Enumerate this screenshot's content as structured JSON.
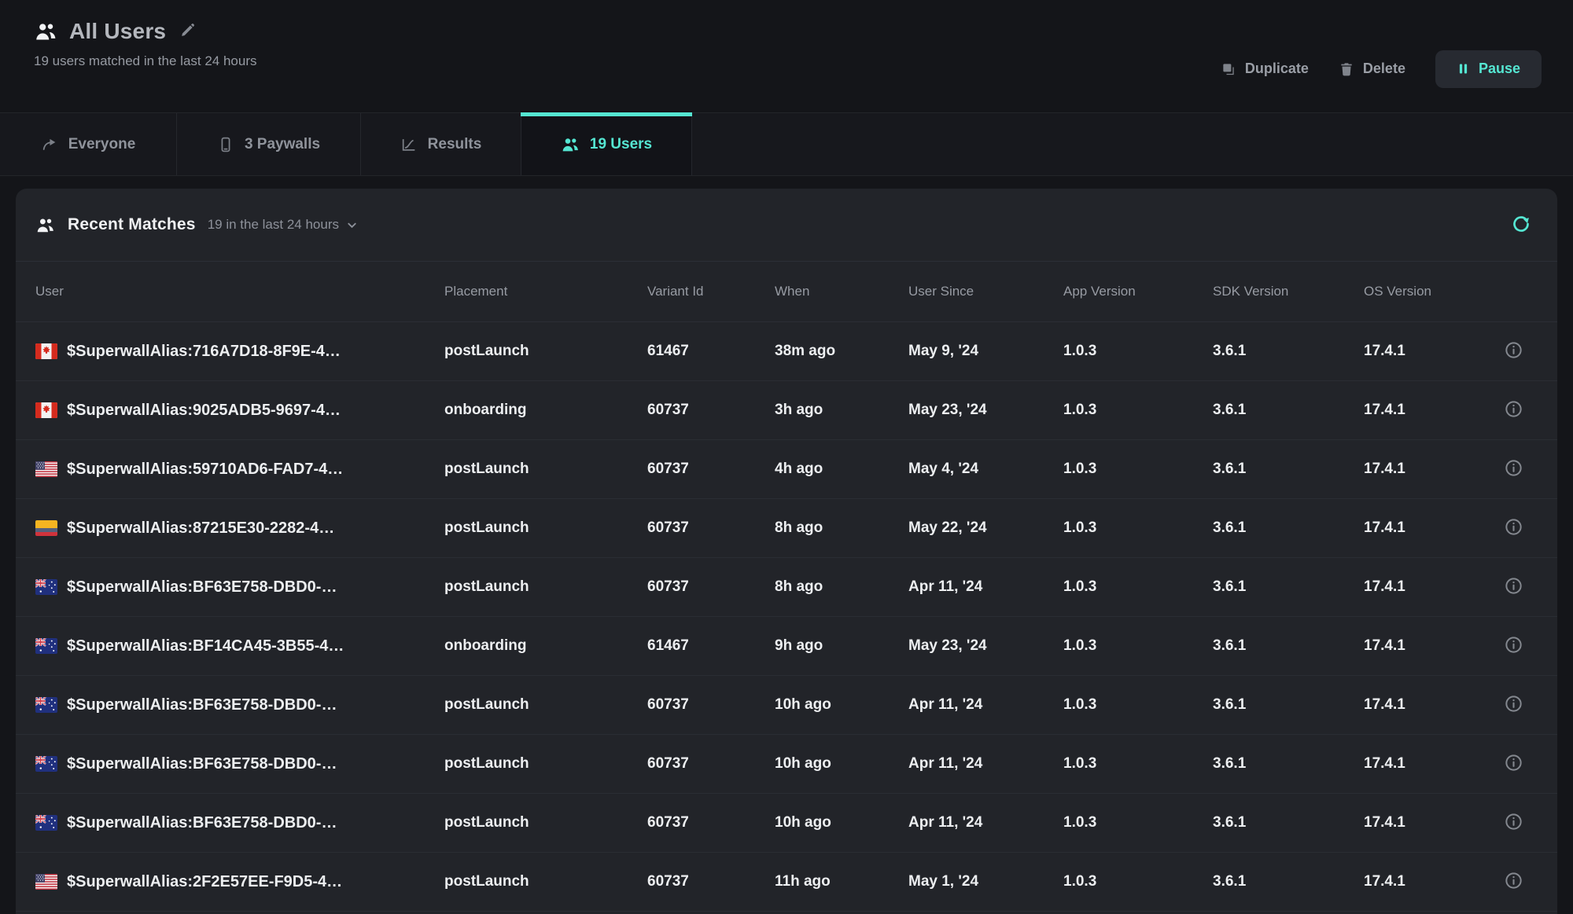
{
  "app": {
    "accent_color": "#55e6d2"
  },
  "header": {
    "title": "All Users",
    "subtitle": "19 users matched in the last 24 hours",
    "actions": {
      "duplicate_label": "Duplicate",
      "delete_label": "Delete",
      "pause_label": "Pause"
    }
  },
  "tabs": [
    {
      "label": "Everyone",
      "icon": "share-icon",
      "active": false
    },
    {
      "label": "3 Paywalls",
      "icon": "phone-icon",
      "active": false
    },
    {
      "label": "Results",
      "icon": "chart-icon",
      "active": false
    },
    {
      "label": "19 Users",
      "icon": "users-icon",
      "active": true
    }
  ],
  "panel": {
    "title": "Recent Matches",
    "filter_label": "19 in the last 24 hours"
  },
  "table": {
    "columns": [
      "User",
      "Placement",
      "Variant Id",
      "When",
      "User Since",
      "App Version",
      "SDK Version",
      "OS Version"
    ],
    "rows": [
      {
        "country": "ca",
        "user": "$SuperwallAlias:716A7D18-8F9E-4…",
        "placement": "postLaunch",
        "variant_id": "61467",
        "when": "38m ago",
        "user_since": "May 9, '24",
        "app_version": "1.0.3",
        "sdk_version": "3.6.1",
        "os_version": "17.4.1"
      },
      {
        "country": "ca",
        "user": "$SuperwallAlias:9025ADB5-9697-4…",
        "placement": "onboarding",
        "variant_id": "60737",
        "when": "3h ago",
        "user_since": "May 23, '24",
        "app_version": "1.0.3",
        "sdk_version": "3.6.1",
        "os_version": "17.4.1"
      },
      {
        "country": "us",
        "user": "$SuperwallAlias:59710AD6-FAD7-4…",
        "placement": "postLaunch",
        "variant_id": "60737",
        "when": "4h ago",
        "user_since": "May 4, '24",
        "app_version": "1.0.3",
        "sdk_version": "3.6.1",
        "os_version": "17.4.1"
      },
      {
        "country": "co",
        "user": "$SuperwallAlias:87215E30-2282-4…",
        "placement": "postLaunch",
        "variant_id": "60737",
        "when": "8h ago",
        "user_since": "May 22, '24",
        "app_version": "1.0.3",
        "sdk_version": "3.6.1",
        "os_version": "17.4.1"
      },
      {
        "country": "au",
        "user": "$SuperwallAlias:BF63E758-DBD0-…",
        "placement": "postLaunch",
        "variant_id": "60737",
        "when": "8h ago",
        "user_since": "Apr 11, '24",
        "app_version": "1.0.3",
        "sdk_version": "3.6.1",
        "os_version": "17.4.1"
      },
      {
        "country": "au",
        "user": "$SuperwallAlias:BF14CA45-3B55-4…",
        "placement": "onboarding",
        "variant_id": "61467",
        "when": "9h ago",
        "user_since": "May 23, '24",
        "app_version": "1.0.3",
        "sdk_version": "3.6.1",
        "os_version": "17.4.1"
      },
      {
        "country": "au",
        "user": "$SuperwallAlias:BF63E758-DBD0-…",
        "placement": "postLaunch",
        "variant_id": "60737",
        "when": "10h ago",
        "user_since": "Apr 11, '24",
        "app_version": "1.0.3",
        "sdk_version": "3.6.1",
        "os_version": "17.4.1"
      },
      {
        "country": "au",
        "user": "$SuperwallAlias:BF63E758-DBD0-…",
        "placement": "postLaunch",
        "variant_id": "60737",
        "when": "10h ago",
        "user_since": "Apr 11, '24",
        "app_version": "1.0.3",
        "sdk_version": "3.6.1",
        "os_version": "17.4.1"
      },
      {
        "country": "au",
        "user": "$SuperwallAlias:BF63E758-DBD0-…",
        "placement": "postLaunch",
        "variant_id": "60737",
        "when": "10h ago",
        "user_since": "Apr 11, '24",
        "app_version": "1.0.3",
        "sdk_version": "3.6.1",
        "os_version": "17.4.1"
      },
      {
        "country": "us",
        "user": "$SuperwallAlias:2F2E57EE-F9D5-4…",
        "placement": "postLaunch",
        "variant_id": "60737",
        "when": "11h ago",
        "user_since": "May 1, '24",
        "app_version": "1.0.3",
        "sdk_version": "3.6.1",
        "os_version": "17.4.1"
      }
    ]
  }
}
